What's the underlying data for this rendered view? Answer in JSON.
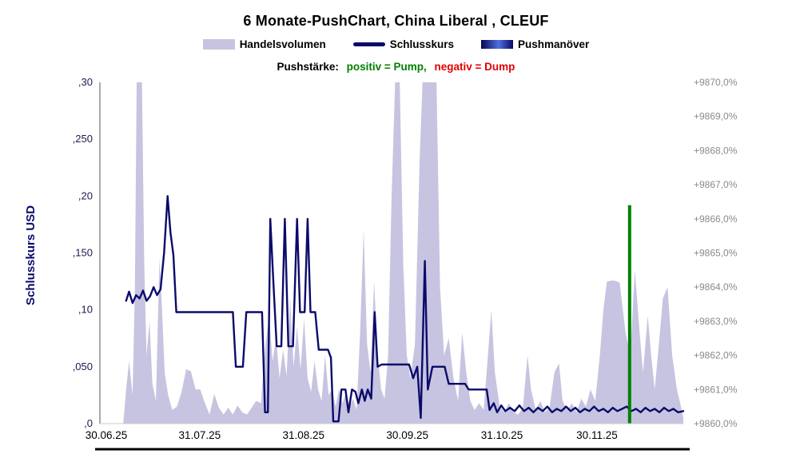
{
  "header": {
    "title": "6 Monate-PushChart, China Liberal , CLEUF"
  },
  "legend": {
    "volume": "Handelsvolumen",
    "close": "Schlusskurs",
    "push": "Pushmanöver"
  },
  "subtitle": {
    "prefix": "Pushstärke:",
    "pump": "positiv = Pump,",
    "dump": "negativ = Dump"
  },
  "colors": {
    "volume_fill": "#c6c4e0",
    "close_line": "#0b0b6b",
    "pump_green": "#008000",
    "dump_red": "#e00000",
    "left_axis_text": "#1b1b4f",
    "right_axis_text": "#8a8a8a",
    "x_axis_text": "#000000",
    "axis_line": "#555555",
    "bottom_rule": "#000000"
  },
  "chart_data": {
    "type": "area+line+bar",
    "title": "6 Monate-PushChart, China Liberal , CLEUF",
    "legend_entries": [
      "Handelsvolumen",
      "Schlusskurs",
      "Pushmanöver"
    ],
    "annotation": "Pushstärke: positiv = Pump, negativ = Dump",
    "left_axis": {
      "label": "Schlusskurs USD",
      "range": [
        0,
        0.3
      ],
      "ticks": [
        {
          "label": ",30",
          "value": 0.3
        },
        {
          "label": ",250",
          "value": 0.25
        },
        {
          "label": ",20",
          "value": 0.2
        },
        {
          "label": ",150",
          "value": 0.15
        },
        {
          "label": ",10",
          "value": 0.1
        },
        {
          "label": ",050",
          "value": 0.05
        },
        {
          "label": ",0",
          "value": 0.0
        }
      ]
    },
    "right_axis": {
      "range": [
        9860,
        9870
      ],
      "ticks": [
        "+9870,0%",
        "+9869,0%",
        "+9868,0%",
        "+9867,0%",
        "+9866,0%",
        "+9865,0%",
        "+9864,0%",
        "+9863,0%",
        "+9862,0%",
        "+9861,0%",
        "+9860,0%"
      ]
    },
    "x_axis": {
      "ticks": [
        {
          "label": "30.06.25",
          "pos": 0.011
        },
        {
          "label": "31.07.25",
          "pos": 0.171
        },
        {
          "label": "31.08.25",
          "pos": 0.349
        },
        {
          "label": "30.09.25",
          "pos": 0.527
        },
        {
          "label": "31.10.25",
          "pos": 0.689
        },
        {
          "label": "30.11.25",
          "pos": 0.852
        }
      ]
    },
    "series": [
      {
        "name": "Handelsvolumen",
        "type": "area",
        "color": "#c6c4e0",
        "points": [
          [
            0.04,
            0.0
          ],
          [
            0.045,
            0.03
          ],
          [
            0.05,
            0.055
          ],
          [
            0.056,
            0.025
          ],
          [
            0.06,
            0.12
          ],
          [
            0.063,
            0.33
          ],
          [
            0.072,
            0.33
          ],
          [
            0.076,
            0.14
          ],
          [
            0.08,
            0.06
          ],
          [
            0.085,
            0.09
          ],
          [
            0.09,
            0.035
          ],
          [
            0.096,
            0.02
          ],
          [
            0.102,
            0.145
          ],
          [
            0.107,
            0.095
          ],
          [
            0.111,
            0.045
          ],
          [
            0.117,
            0.025
          ],
          [
            0.124,
            0.012
          ],
          [
            0.132,
            0.015
          ],
          [
            0.14,
            0.028
          ],
          [
            0.148,
            0.048
          ],
          [
            0.156,
            0.046
          ],
          [
            0.164,
            0.03
          ],
          [
            0.172,
            0.03
          ],
          [
            0.18,
            0.018
          ],
          [
            0.188,
            0.008
          ],
          [
            0.196,
            0.026
          ],
          [
            0.204,
            0.014
          ],
          [
            0.212,
            0.008
          ],
          [
            0.22,
            0.014
          ],
          [
            0.228,
            0.008
          ],
          [
            0.236,
            0.016
          ],
          [
            0.244,
            0.01
          ],
          [
            0.252,
            0.008
          ],
          [
            0.26,
            0.014
          ],
          [
            0.268,
            0.02
          ],
          [
            0.276,
            0.018
          ],
          [
            0.284,
            0.07
          ],
          [
            0.29,
            0.095
          ],
          [
            0.296,
            0.055
          ],
          [
            0.302,
            0.075
          ],
          [
            0.308,
            0.04
          ],
          [
            0.314,
            0.065
          ],
          [
            0.32,
            0.042
          ],
          [
            0.326,
            0.11
          ],
          [
            0.332,
            0.05
          ],
          [
            0.338,
            0.085
          ],
          [
            0.344,
            0.048
          ],
          [
            0.35,
            0.092
          ],
          [
            0.356,
            0.04
          ],
          [
            0.362,
            0.028
          ],
          [
            0.368,
            0.055
          ],
          [
            0.374,
            0.03
          ],
          [
            0.38,
            0.02
          ],
          [
            0.386,
            0.06
          ],
          [
            0.392,
            0.025
          ],
          [
            0.398,
            0.03
          ],
          [
            0.404,
            0.015
          ],
          [
            0.41,
            0.03
          ],
          [
            0.416,
            0.018
          ],
          [
            0.422,
            0.028
          ],
          [
            0.428,
            0.015
          ],
          [
            0.434,
            0.022
          ],
          [
            0.44,
            0.012
          ],
          [
            0.446,
            0.08
          ],
          [
            0.452,
            0.17
          ],
          [
            0.458,
            0.07
          ],
          [
            0.464,
            0.045
          ],
          [
            0.47,
            0.125
          ],
          [
            0.476,
            0.06
          ],
          [
            0.482,
            0.03
          ],
          [
            0.488,
            0.022
          ],
          [
            0.494,
            0.06
          ],
          [
            0.5,
            0.2
          ],
          [
            0.506,
            0.33
          ],
          [
            0.514,
            0.33
          ],
          [
            0.52,
            0.14
          ],
          [
            0.526,
            0.06
          ],
          [
            0.532,
            0.04
          ],
          [
            0.54,
            0.07
          ],
          [
            0.548,
            0.23
          ],
          [
            0.553,
            0.33
          ],
          [
            0.577,
            0.33
          ],
          [
            0.583,
            0.12
          ],
          [
            0.59,
            0.06
          ],
          [
            0.598,
            0.075
          ],
          [
            0.606,
            0.04
          ],
          [
            0.614,
            0.02
          ],
          [
            0.621,
            0.08
          ],
          [
            0.628,
            0.045
          ],
          [
            0.635,
            0.02
          ],
          [
            0.642,
            0.012
          ],
          [
            0.65,
            0.018
          ],
          [
            0.658,
            0.012
          ],
          [
            0.665,
            0.06
          ],
          [
            0.671,
            0.1
          ],
          [
            0.677,
            0.045
          ],
          [
            0.685,
            0.016
          ],
          [
            0.693,
            0.01
          ],
          [
            0.701,
            0.018
          ],
          [
            0.709,
            0.01
          ],
          [
            0.717,
            0.008
          ],
          [
            0.725,
            0.014
          ],
          [
            0.733,
            0.06
          ],
          [
            0.739,
            0.03
          ],
          [
            0.747,
            0.012
          ],
          [
            0.755,
            0.02
          ],
          [
            0.763,
            0.01
          ],
          [
            0.771,
            0.015
          ],
          [
            0.779,
            0.045
          ],
          [
            0.787,
            0.053
          ],
          [
            0.793,
            0.02
          ],
          [
            0.801,
            0.012
          ],
          [
            0.809,
            0.018
          ],
          [
            0.817,
            0.01
          ],
          [
            0.825,
            0.022
          ],
          [
            0.833,
            0.015
          ],
          [
            0.841,
            0.03
          ],
          [
            0.849,
            0.02
          ],
          [
            0.857,
            0.06
          ],
          [
            0.863,
            0.1
          ],
          [
            0.869,
            0.125
          ],
          [
            0.881,
            0.126
          ],
          [
            0.891,
            0.124
          ],
          [
            0.901,
            0.08
          ],
          [
            0.909,
            0.06
          ],
          [
            0.917,
            0.135
          ],
          [
            0.925,
            0.08
          ],
          [
            0.931,
            0.045
          ],
          [
            0.939,
            0.095
          ],
          [
            0.945,
            0.06
          ],
          [
            0.951,
            0.03
          ],
          [
            0.959,
            0.075
          ],
          [
            0.965,
            0.11
          ],
          [
            0.973,
            0.12
          ],
          [
            0.981,
            0.06
          ],
          [
            0.989,
            0.03
          ],
          [
            0.996,
            0.015
          ],
          [
            1.0,
            0.005
          ]
        ]
      },
      {
        "name": "Schlusskurs",
        "type": "line",
        "color": "#0b0b6b",
        "points": [
          [
            0.045,
            0.108
          ],
          [
            0.05,
            0.116
          ],
          [
            0.056,
            0.106
          ],
          [
            0.062,
            0.113
          ],
          [
            0.068,
            0.11
          ],
          [
            0.074,
            0.117
          ],
          [
            0.08,
            0.108
          ],
          [
            0.086,
            0.112
          ],
          [
            0.092,
            0.12
          ],
          [
            0.098,
            0.113
          ],
          [
            0.104,
            0.118
          ],
          [
            0.11,
            0.15
          ],
          [
            0.116,
            0.2
          ],
          [
            0.121,
            0.168
          ],
          [
            0.126,
            0.148
          ],
          [
            0.131,
            0.098
          ],
          [
            0.18,
            0.098
          ],
          [
            0.228,
            0.098
          ],
          [
            0.233,
            0.05
          ],
          [
            0.245,
            0.05
          ],
          [
            0.251,
            0.098
          ],
          [
            0.278,
            0.098
          ],
          [
            0.283,
            0.01
          ],
          [
            0.288,
            0.01
          ],
          [
            0.292,
            0.18
          ],
          [
            0.297,
            0.128
          ],
          [
            0.303,
            0.068
          ],
          [
            0.311,
            0.068
          ],
          [
            0.317,
            0.18
          ],
          [
            0.323,
            0.068
          ],
          [
            0.331,
            0.068
          ],
          [
            0.338,
            0.18
          ],
          [
            0.343,
            0.098
          ],
          [
            0.351,
            0.098
          ],
          [
            0.356,
            0.18
          ],
          [
            0.361,
            0.098
          ],
          [
            0.369,
            0.098
          ],
          [
            0.375,
            0.065
          ],
          [
            0.391,
            0.065
          ],
          [
            0.396,
            0.058
          ],
          [
            0.4,
            0.002
          ],
          [
            0.409,
            0.002
          ],
          [
            0.414,
            0.03
          ],
          [
            0.421,
            0.03
          ],
          [
            0.426,
            0.01
          ],
          [
            0.432,
            0.03
          ],
          [
            0.438,
            0.028
          ],
          [
            0.443,
            0.018
          ],
          [
            0.449,
            0.03
          ],
          [
            0.454,
            0.02
          ],
          [
            0.459,
            0.03
          ],
          [
            0.465,
            0.022
          ],
          [
            0.471,
            0.098
          ],
          [
            0.476,
            0.05
          ],
          [
            0.483,
            0.052
          ],
          [
            0.53,
            0.052
          ],
          [
            0.537,
            0.04
          ],
          [
            0.544,
            0.05
          ],
          [
            0.55,
            0.005
          ],
          [
            0.557,
            0.143
          ],
          [
            0.562,
            0.03
          ],
          [
            0.57,
            0.05
          ],
          [
            0.591,
            0.05
          ],
          [
            0.598,
            0.035
          ],
          [
            0.626,
            0.035
          ],
          [
            0.632,
            0.03
          ],
          [
            0.663,
            0.03
          ],
          [
            0.668,
            0.012
          ],
          [
            0.675,
            0.018
          ],
          [
            0.681,
            0.01
          ],
          [
            0.688,
            0.016
          ],
          [
            0.695,
            0.011
          ],
          [
            0.703,
            0.014
          ],
          [
            0.711,
            0.011
          ],
          [
            0.719,
            0.016
          ],
          [
            0.727,
            0.011
          ],
          [
            0.735,
            0.014
          ],
          [
            0.743,
            0.01
          ],
          [
            0.751,
            0.014
          ],
          [
            0.759,
            0.011
          ],
          [
            0.767,
            0.015
          ],
          [
            0.775,
            0.01
          ],
          [
            0.783,
            0.013
          ],
          [
            0.791,
            0.011
          ],
          [
            0.799,
            0.015
          ],
          [
            0.807,
            0.011
          ],
          [
            0.815,
            0.014
          ],
          [
            0.823,
            0.01
          ],
          [
            0.831,
            0.013
          ],
          [
            0.839,
            0.011
          ],
          [
            0.847,
            0.015
          ],
          [
            0.855,
            0.011
          ],
          [
            0.863,
            0.013
          ],
          [
            0.871,
            0.01
          ],
          [
            0.879,
            0.014
          ],
          [
            0.887,
            0.011
          ],
          [
            0.895,
            0.013
          ],
          [
            0.903,
            0.015
          ],
          [
            0.911,
            0.011
          ],
          [
            0.919,
            0.013
          ],
          [
            0.927,
            0.01
          ],
          [
            0.935,
            0.014
          ],
          [
            0.943,
            0.011
          ],
          [
            0.951,
            0.013
          ],
          [
            0.959,
            0.01
          ],
          [
            0.967,
            0.014
          ],
          [
            0.975,
            0.011
          ],
          [
            0.983,
            0.013
          ],
          [
            0.991,
            0.01
          ],
          [
            1.0,
            0.011
          ]
        ]
      },
      {
        "name": "Pushmanöver",
        "type": "bar",
        "color": "#008000",
        "points": [
          [
            0.908,
            0.192
          ]
        ]
      }
    ]
  }
}
